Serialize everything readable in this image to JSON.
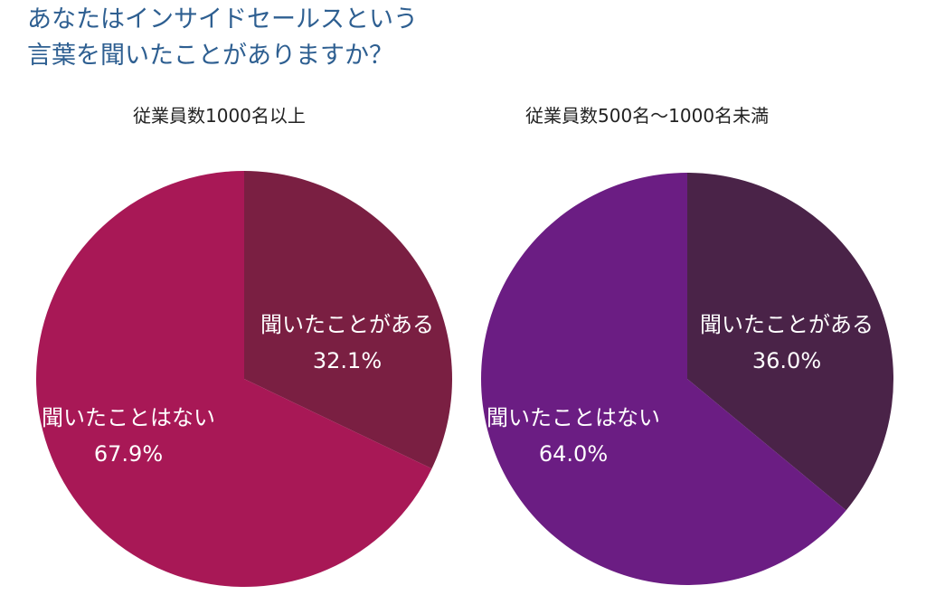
{
  "title": {
    "line1": "あなたはインサイドセールスという",
    "line2": "言葉を聞いたことがありますか？"
  },
  "chart_data": [
    {
      "type": "pie",
      "title": "従業員数1000名以上",
      "slices": [
        {
          "label": "聞いたことがある",
          "value": 32.1,
          "value_label": "32.1%",
          "color": "#7a1f42"
        },
        {
          "label": "聞いたことはない",
          "value": 67.9,
          "value_label": "67.9%",
          "color": "#a81856"
        }
      ]
    },
    {
      "type": "pie",
      "title": "従業員数500名～1000名未満",
      "slices": [
        {
          "label": "聞いたことがある",
          "value": 36.0,
          "value_label": "36.0%",
          "color": "#4a2348"
        },
        {
          "label": "聞いたことはない",
          "value": 64.0,
          "value_label": "64.0%",
          "color": "#6b1d83"
        }
      ]
    }
  ]
}
